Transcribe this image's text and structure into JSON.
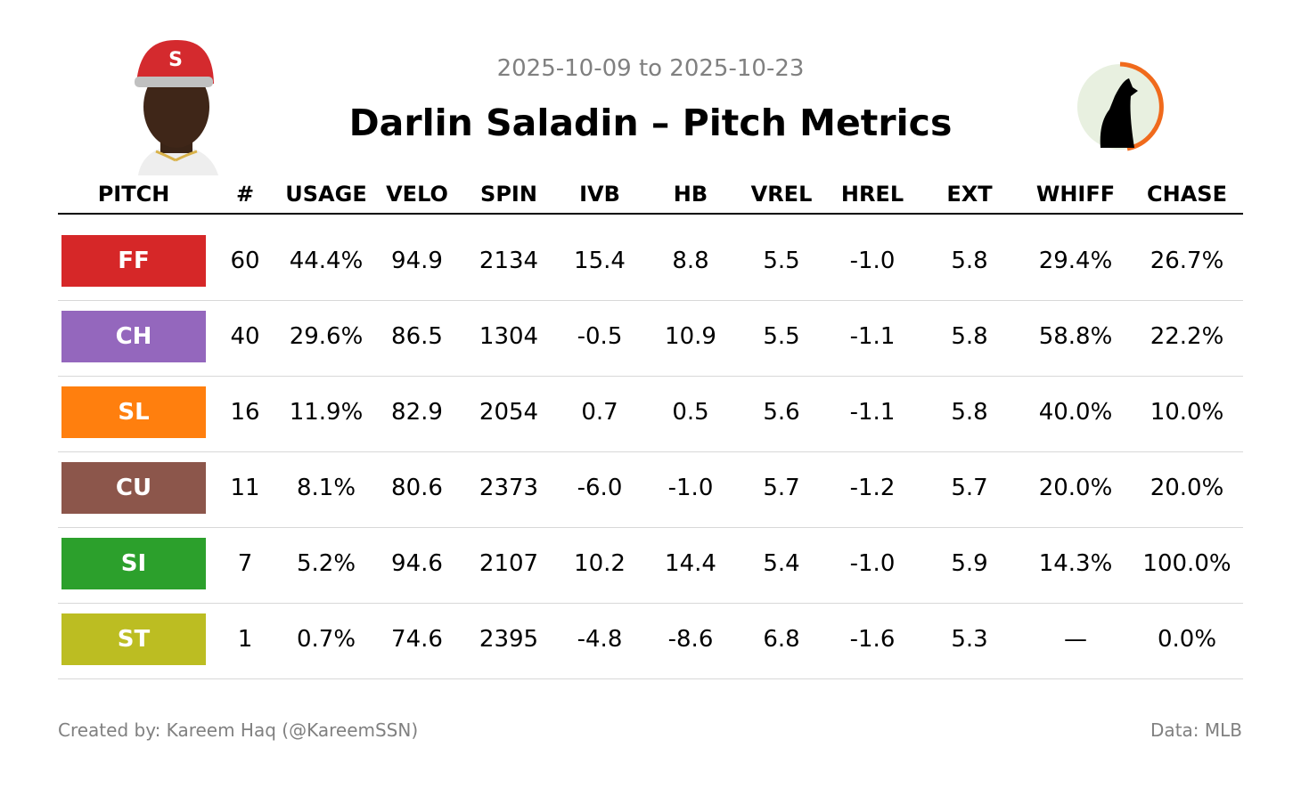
{
  "header": {
    "date_range": "2025-10-09 to 2025-10-23",
    "title": "Darlin Saladin – Pitch Metrics"
  },
  "table": {
    "columns": [
      "PITCH",
      "#",
      "USAGE",
      "VELO",
      "SPIN",
      "IVB",
      "HB",
      "VREL",
      "HREL",
      "EXT",
      "WHIFF",
      "CHASE"
    ],
    "rows": [
      [
        "FF",
        "60",
        "44.4%",
        "94.9",
        "2134",
        "15.4",
        "8.8",
        "5.5",
        "-1.0",
        "5.8",
        "29.4%",
        "26.7%"
      ],
      [
        "CH",
        "40",
        "29.6%",
        "86.5",
        "1304",
        "-0.5",
        "10.9",
        "5.5",
        "-1.1",
        "5.8",
        "58.8%",
        "22.2%"
      ],
      [
        "SL",
        "16",
        "11.9%",
        "82.9",
        "2054",
        "0.7",
        "0.5",
        "5.6",
        "-1.1",
        "5.8",
        "40.0%",
        "10.0%"
      ],
      [
        "CU",
        "11",
        "8.1%",
        "80.6",
        "2373",
        "-6.0",
        "-1.0",
        "5.7",
        "-1.2",
        "5.7",
        "20.0%",
        "20.0%"
      ],
      [
        "SI",
        "7",
        "5.2%",
        "94.6",
        "2107",
        "10.2",
        "14.4",
        "5.4",
        "-1.0",
        "5.9",
        "14.3%",
        "100.0%"
      ],
      [
        "ST",
        "1",
        "0.7%",
        "74.6",
        "2395",
        "-4.8",
        "-8.6",
        "6.8",
        "-1.6",
        "5.3",
        "—",
        "0.0%"
      ]
    ]
  },
  "footer": {
    "credit": "Created by: Kareem Haq (@KareemSSN)",
    "source": "Data: MLB"
  }
}
